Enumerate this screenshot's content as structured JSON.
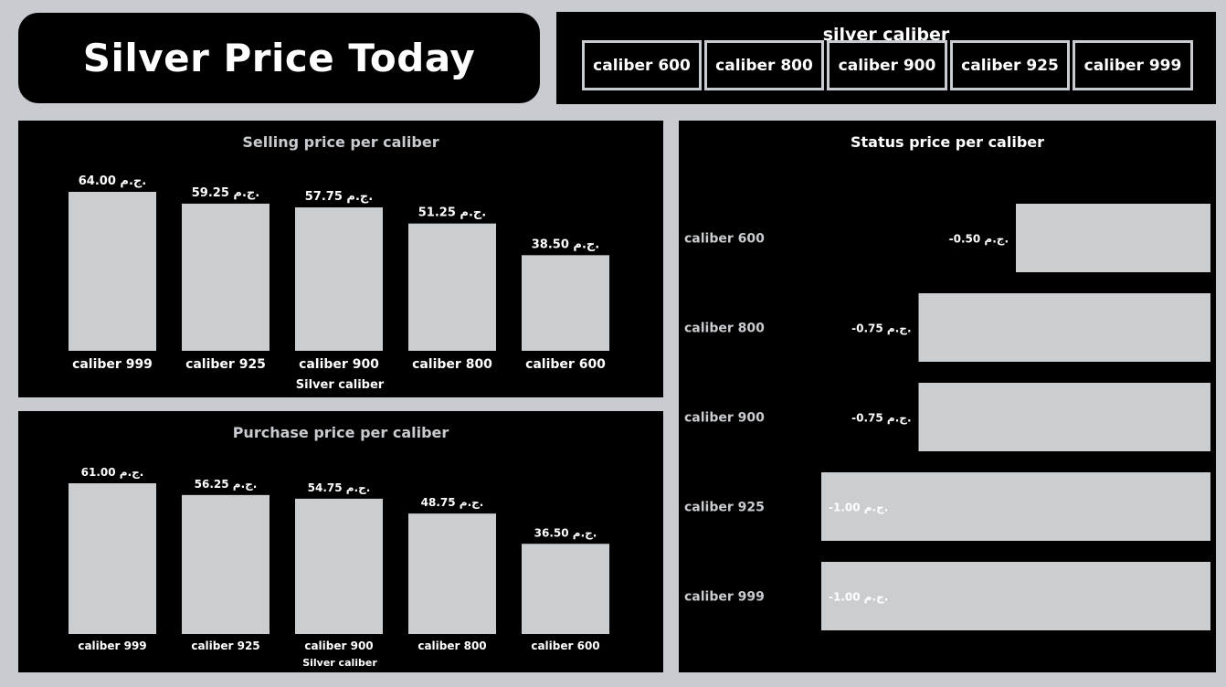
{
  "header": {
    "title": "Silver Price Today"
  },
  "slicer": {
    "title": "silver caliber",
    "items": [
      "caliber 600",
      "caliber 800",
      "caliber 900",
      "caliber 925",
      "caliber 999"
    ]
  },
  "colors": {
    "bar": "#cbced1",
    "panel_bg": "#000000",
    "page_bg": "#c8ccd0"
  },
  "chart_data": [
    {
      "id": "selling",
      "type": "bar",
      "title": "Selling price per caliber",
      "xlabel": "Silver caliber",
      "ylabel": "",
      "categories": [
        "caliber 999",
        "caliber 925",
        "caliber 900",
        "caliber 800",
        "caliber 600"
      ],
      "values": [
        64.0,
        59.25,
        57.75,
        51.25,
        38.5
      ],
      "labels": [
        "64.00 ج.م.",
        "59.25 ج.م.",
        "57.75 ج.م.",
        "51.25 ج.م.",
        "38.50 ج.م."
      ],
      "ylim": [
        0,
        64
      ]
    },
    {
      "id": "purchase",
      "type": "bar",
      "title": "Purchase price per caliber",
      "xlabel": "Silver caliber",
      "ylabel": "",
      "categories": [
        "caliber 999",
        "caliber 925",
        "caliber 900",
        "caliber 800",
        "caliber 600"
      ],
      "values": [
        61.0,
        56.25,
        54.75,
        48.75,
        36.5
      ],
      "labels": [
        "61.00 ج.م.",
        "56.25 ج.م.",
        "54.75 ج.م.",
        "48.75 ج.م.",
        "36.50 ج.م."
      ],
      "ylim": [
        0,
        61
      ]
    },
    {
      "id": "status",
      "type": "bar",
      "orientation": "horizontal",
      "title": "Status price per caliber",
      "categories": [
        "caliber 600",
        "caliber 800",
        "caliber 900",
        "caliber 925",
        "caliber 999"
      ],
      "values": [
        -0.5,
        -0.75,
        -0.75,
        -1.0,
        -1.0
      ],
      "labels": [
        "-0.50 ج.م.",
        "-0.75 ج.م.",
        "-0.75 ج.م.",
        "-1.00 ج.م.",
        "-1.00 ج.م."
      ],
      "xlim": [
        -1.0,
        0
      ]
    }
  ]
}
